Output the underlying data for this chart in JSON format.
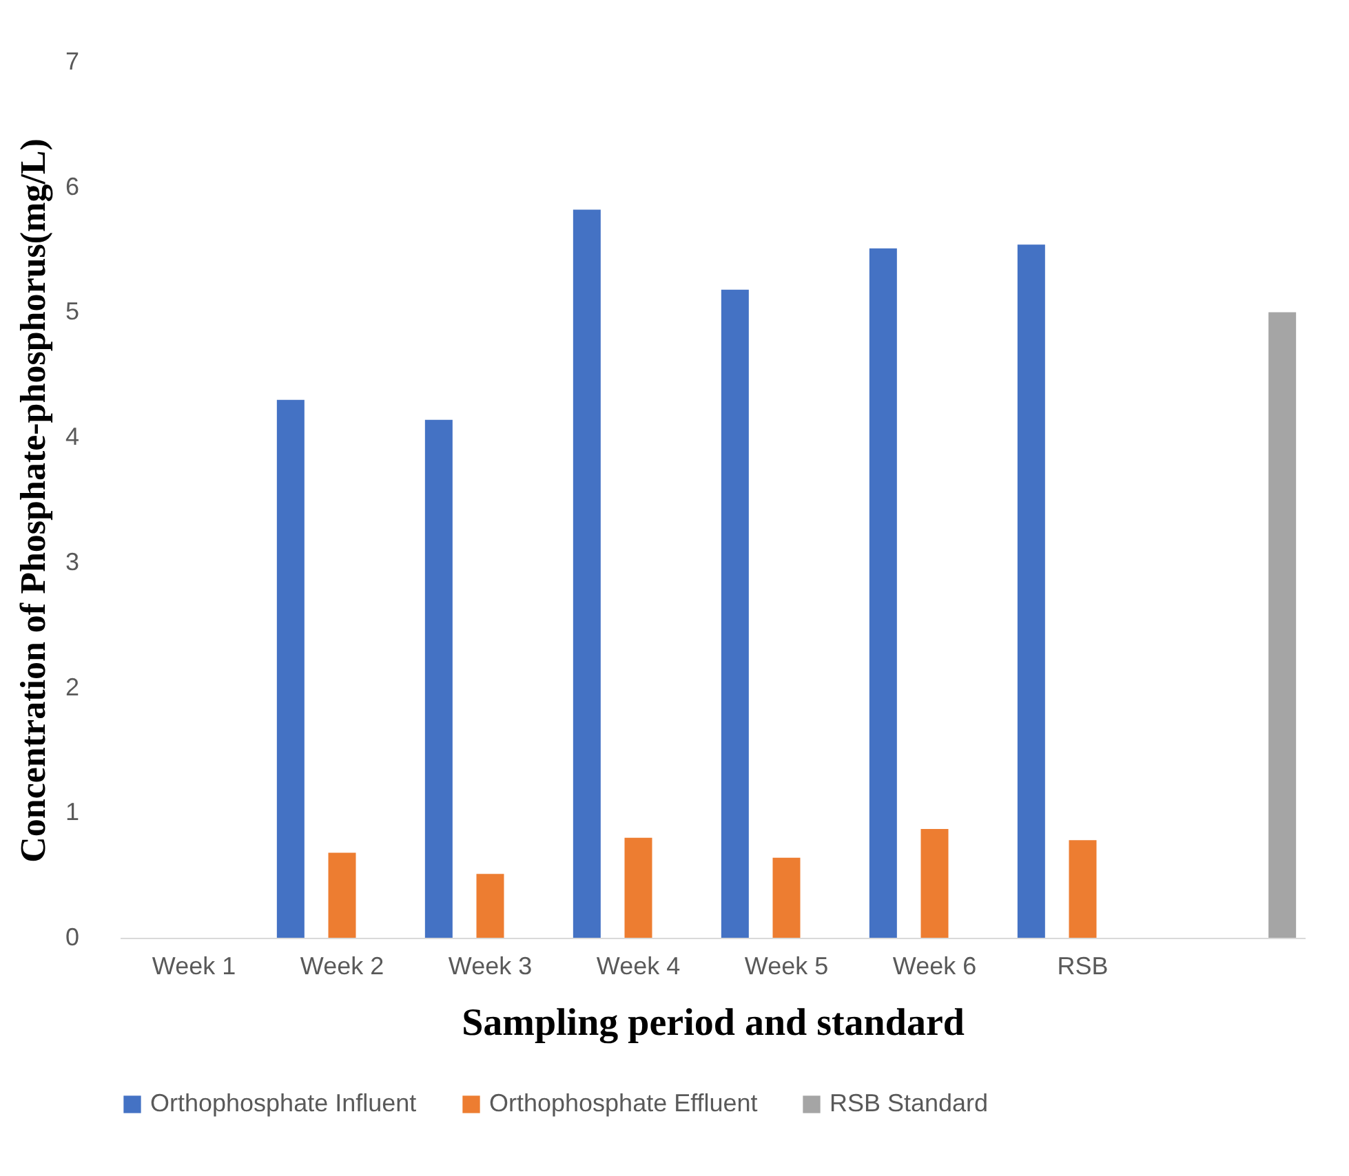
{
  "chart_data": {
    "type": "bar",
    "xlabel": "Sampling period and standard",
    "ylabel": "Concentration of Phosphate-phosphorus(mg/L)",
    "categories": [
      "Week 1",
      "Week 2",
      "Week 3",
      "Week 4",
      "Week 5",
      "Week 6",
      "RSB",
      null
    ],
    "series": [
      {
        "name": "Orthophosphate Influent",
        "color": "#4472c4",
        "values": [
          null,
          4.3,
          4.14,
          5.82,
          5.18,
          5.51,
          5.54,
          null
        ]
      },
      {
        "name": "Orthophosphate Effluent",
        "color": "#ed7d31",
        "values": [
          null,
          0.68,
          0.51,
          0.8,
          0.64,
          0.87,
          0.78,
          null
        ]
      },
      {
        "name": "RSB Standard",
        "color": "#a5a5a5",
        "values": [
          null,
          null,
          null,
          null,
          null,
          null,
          null,
          5
        ]
      }
    ],
    "ylim": [
      0,
      7
    ],
    "yticks": [
      0,
      1,
      2,
      3,
      4,
      5,
      6,
      7
    ],
    "grid": false,
    "legend": "bottom"
  }
}
